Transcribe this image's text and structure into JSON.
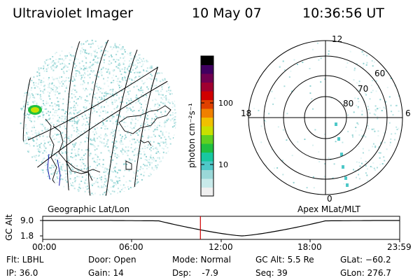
{
  "header": {
    "instrument": "Ultraviolet Imager",
    "date": "10 May 07",
    "time": "10:36:56 UT"
  },
  "colorbar": {
    "label": "photon cm⁻²s⁻¹",
    "ticks": [
      "100",
      "10"
    ],
    "colors": [
      "#f0f0f0",
      "#c8eaea",
      "#9ad8d8",
      "#4ec8c8",
      "#18c8a0",
      "#20c040",
      "#60d020",
      "#c8e000",
      "#f0c000",
      "#f08000",
      "#e04000",
      "#d00000",
      "#a00030",
      "#700050",
      "#400060",
      "#000000"
    ]
  },
  "left_panel": {
    "label": "Geographic Lat/Lon"
  },
  "right_panel": {
    "label": "Apex MLat/MLT",
    "mlt_labels": [
      "12",
      "18",
      "6",
      "0"
    ],
    "mlat_labels": [
      "60",
      "70",
      "80"
    ]
  },
  "alt_plot": {
    "ylabel": "GC Alt",
    "ytick_top": "9.0",
    "ytick_bottom": "1.8",
    "xticks": [
      "00:00",
      "06:00",
      "12:00",
      "18:00",
      "23:59"
    ],
    "current_time_marker_hours": 10.6,
    "minimum_hours": 13.4
  },
  "info": {
    "flt": "Flt: LBHL",
    "ip": "IP: 36.0",
    "door": "Door: Open",
    "gain": "Gain: 14",
    "mode": "Mode: Normal",
    "dsp": "Dsp:    -7.9",
    "gcalt": "GC Alt: 5.5 Re",
    "seq": "Seq: 39",
    "glat": "GLat: −60.2",
    "glon": "GLon: 276.7"
  }
}
